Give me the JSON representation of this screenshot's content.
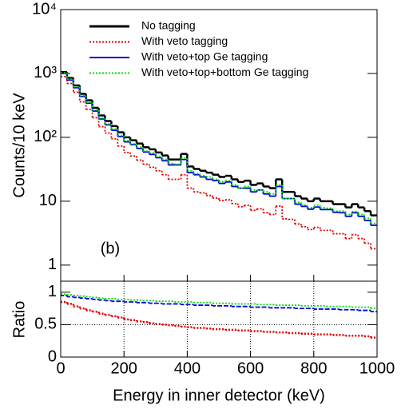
{
  "chart_data": [
    {
      "type": "histogram",
      "ylabel": "Counts/10 keV",
      "log_y": true,
      "annotation": "(b)",
      "legend": "top-left",
      "xlim": [
        0,
        1000
      ],
      "ylim": [
        0.56,
        10000
      ],
      "yticks": [
        {
          "value": 1,
          "label": "1"
        },
        {
          "value": 10,
          "label": "10"
        },
        {
          "value": 100,
          "label": "10²"
        },
        {
          "value": 1000,
          "label": "10³"
        },
        {
          "value": 10000,
          "label": "10⁴"
        }
      ],
      "bins": [
        0,
        20,
        40,
        60,
        80,
        100,
        120,
        140,
        160,
        180,
        200,
        220,
        240,
        260,
        280,
        300,
        320,
        340,
        360,
        380,
        400,
        420,
        440,
        460,
        480,
        500,
        520,
        540,
        560,
        580,
        600,
        620,
        640,
        660,
        680,
        700,
        720,
        740,
        760,
        780,
        800,
        820,
        840,
        860,
        880,
        900,
        920,
        940,
        960,
        980,
        1000
      ],
      "series": [
        {
          "name": "No tagging",
          "color": "#000000",
          "dash": "none",
          "values": [
            1050,
            850,
            650,
            480,
            380,
            290,
            220,
            180,
            150,
            120,
            100,
            90,
            80,
            70,
            65,
            58,
            52,
            45,
            45,
            55,
            35,
            32,
            30,
            28,
            26,
            24,
            25,
            22,
            20,
            21,
            18,
            19,
            17,
            16,
            22,
            14,
            14,
            12,
            11,
            10,
            11,
            10,
            10,
            9,
            9,
            8,
            9,
            8,
            7,
            6
          ]
        },
        {
          "name": "With veto tagging",
          "color": "#e00000",
          "dash": "2,2",
          "values": [
            893,
            697,
            507,
            360,
            274,
            203,
            147,
            117,
            95,
            73,
            58,
            51,
            44,
            38,
            34,
            30,
            26,
            22,
            22,
            26,
            16,
            14,
            13.5,
            12.3,
            11.2,
            10.3,
            10.5,
            9.2,
            8.2,
            8.6,
            7.2,
            7.6,
            6.6,
            6.2,
            8.4,
            5.3,
            5.2,
            4.4,
            4.0,
            3.6,
            3.9,
            3.5,
            3.5,
            3.1,
            3.1,
            2.6,
            3.0,
            2.6,
            2.2,
            1.8
          ]
        },
        {
          "name": "With veto+top Ge tagging",
          "color": "#0000e0",
          "dash": "none",
          "values": [
            998,
            791,
            598,
            437,
            342,
            258,
            194,
            157,
            129,
            103,
            85,
            77,
            67,
            59,
            54,
            48,
            43,
            37,
            37,
            45,
            28,
            26,
            24,
            22,
            21,
            19,
            20,
            17,
            16,
            16,
            14,
            15,
            13,
            12,
            17,
            11,
            11,
            9,
            8.3,
            7.5,
            8.1,
            7.4,
            7.4,
            6.7,
            6.6,
            5.8,
            6.6,
            5.8,
            5.0,
            4.2
          ]
        },
        {
          "name": "With veto+top+bottom Ge tagging",
          "color": "#00e000",
          "dash": "2,2",
          "values": [
            1019,
            816,
            618,
            451,
            353,
            267,
            200,
            162,
            135,
            107,
            89,
            79,
            70,
            61,
            57,
            50,
            45,
            39,
            38,
            47,
            30,
            27,
            25,
            24,
            22,
            20,
            21,
            18,
            16,
            17,
            15,
            15,
            14,
            13,
            18,
            11,
            11,
            9.6,
            8.7,
            7.9,
            8.7,
            7.9,
            7.8,
            7.0,
            7.0,
            6.2,
            6.9,
            6.2,
            5.4,
            4.5
          ]
        }
      ]
    },
    {
      "type": "histogram",
      "ylabel": "Ratio",
      "xlabel": "Energy in inner detector (keV)",
      "grid": true,
      "xlim": [
        0,
        1000
      ],
      "xticks": [
        0,
        200,
        400,
        600,
        800,
        1000
      ],
      "ylim": [
        0,
        1.17
      ],
      "yticks": [
        0,
        0.5,
        1
      ],
      "bins": [
        0,
        20,
        40,
        60,
        80,
        100,
        120,
        140,
        160,
        180,
        200,
        220,
        240,
        260,
        280,
        300,
        320,
        340,
        360,
        380,
        400,
        420,
        440,
        460,
        480,
        500,
        520,
        540,
        560,
        580,
        600,
        620,
        640,
        660,
        680,
        700,
        720,
        740,
        760,
        780,
        800,
        820,
        840,
        860,
        880,
        900,
        920,
        940,
        960,
        980,
        1000
      ],
      "series": [
        {
          "color": "#e00000",
          "dash": "2,2",
          "values": [
            0.85,
            0.82,
            0.78,
            0.75,
            0.72,
            0.7,
            0.67,
            0.65,
            0.63,
            0.61,
            0.58,
            0.57,
            0.55,
            0.54,
            0.52,
            0.51,
            0.5,
            0.49,
            0.48,
            0.47,
            0.46,
            0.45,
            0.45,
            0.44,
            0.43,
            0.43,
            0.42,
            0.42,
            0.41,
            0.41,
            0.4,
            0.4,
            0.39,
            0.39,
            0.38,
            0.38,
            0.37,
            0.37,
            0.36,
            0.36,
            0.35,
            0.35,
            0.35,
            0.34,
            0.34,
            0.33,
            0.33,
            0.33,
            0.32,
            0.3
          ]
        },
        {
          "color": "#0000e0",
          "dash": "4,2",
          "values": [
            0.95,
            0.93,
            0.92,
            0.91,
            0.9,
            0.89,
            0.88,
            0.87,
            0.86,
            0.86,
            0.85,
            0.85,
            0.84,
            0.84,
            0.83,
            0.83,
            0.82,
            0.82,
            0.82,
            0.81,
            0.81,
            0.8,
            0.8,
            0.8,
            0.79,
            0.79,
            0.79,
            0.78,
            0.78,
            0.78,
            0.77,
            0.77,
            0.77,
            0.76,
            0.76,
            0.76,
            0.76,
            0.75,
            0.75,
            0.75,
            0.74,
            0.74,
            0.74,
            0.74,
            0.73,
            0.73,
            0.73,
            0.72,
            0.72,
            0.7
          ]
        },
        {
          "color": "#00e000",
          "dash": "2,2",
          "values": [
            0.97,
            0.96,
            0.95,
            0.94,
            0.93,
            0.92,
            0.91,
            0.9,
            0.9,
            0.89,
            0.89,
            0.88,
            0.88,
            0.87,
            0.87,
            0.86,
            0.86,
            0.86,
            0.85,
            0.85,
            0.85,
            0.84,
            0.84,
            0.84,
            0.83,
            0.83,
            0.83,
            0.82,
            0.82,
            0.82,
            0.82,
            0.81,
            0.81,
            0.81,
            0.8,
            0.8,
            0.8,
            0.8,
            0.79,
            0.79,
            0.79,
            0.79,
            0.78,
            0.78,
            0.78,
            0.78,
            0.77,
            0.77,
            0.77,
            0.75
          ]
        }
      ]
    }
  ]
}
